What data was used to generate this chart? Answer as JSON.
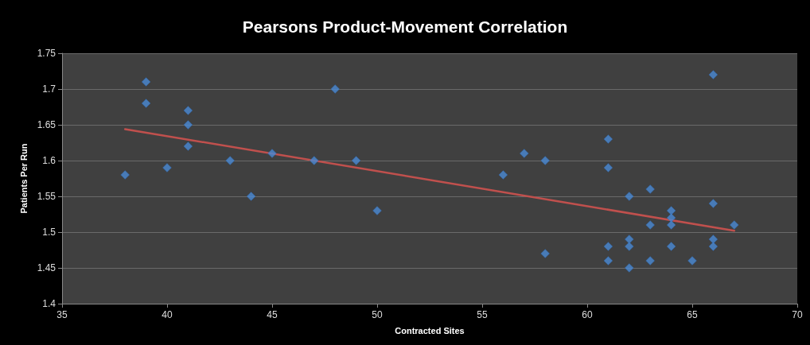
{
  "chart_data": {
    "type": "scatter",
    "title": "Pearsons Product-Movement Correlation",
    "xlabel": "Contracted Sites",
    "ylabel": "Patients Per Run",
    "xlim": [
      35,
      70
    ],
    "xticks": [
      35,
      40,
      45,
      50,
      55,
      60,
      65,
      70
    ],
    "ylim": [
      1.4,
      1.75
    ],
    "yticks": [
      1.4,
      1.45,
      1.5,
      1.55,
      1.6,
      1.65,
      1.7,
      1.75
    ],
    "grid": "y",
    "series": [
      {
        "marker": "diamond",
        "color": "#4a8ad4",
        "x": [
          38,
          39,
          39,
          40,
          41,
          41,
          41,
          43,
          44,
          45,
          47,
          48,
          49,
          50,
          56,
          57,
          58,
          58,
          61,
          61,
          61,
          61,
          62,
          62,
          62,
          62,
          63,
          63,
          63,
          64,
          64,
          64,
          64,
          65,
          66,
          66,
          66,
          66,
          67
        ],
        "values": [
          1.58,
          1.71,
          1.68,
          1.59,
          1.67,
          1.65,
          1.62,
          1.6,
          1.55,
          1.61,
          1.6,
          1.7,
          1.6,
          1.53,
          1.58,
          1.61,
          1.6,
          1.47,
          1.63,
          1.59,
          1.48,
          1.46,
          1.55,
          1.49,
          1.48,
          1.45,
          1.56,
          1.51,
          1.46,
          1.53,
          1.52,
          1.51,
          1.48,
          1.46,
          1.72,
          1.54,
          1.49,
          1.48,
          1.51
        ]
      },
      {
        "type": "line",
        "marker": "none",
        "color": "#c0504d",
        "x": [
          38,
          67
        ],
        "values": [
          1.644,
          1.502
        ]
      }
    ]
  }
}
